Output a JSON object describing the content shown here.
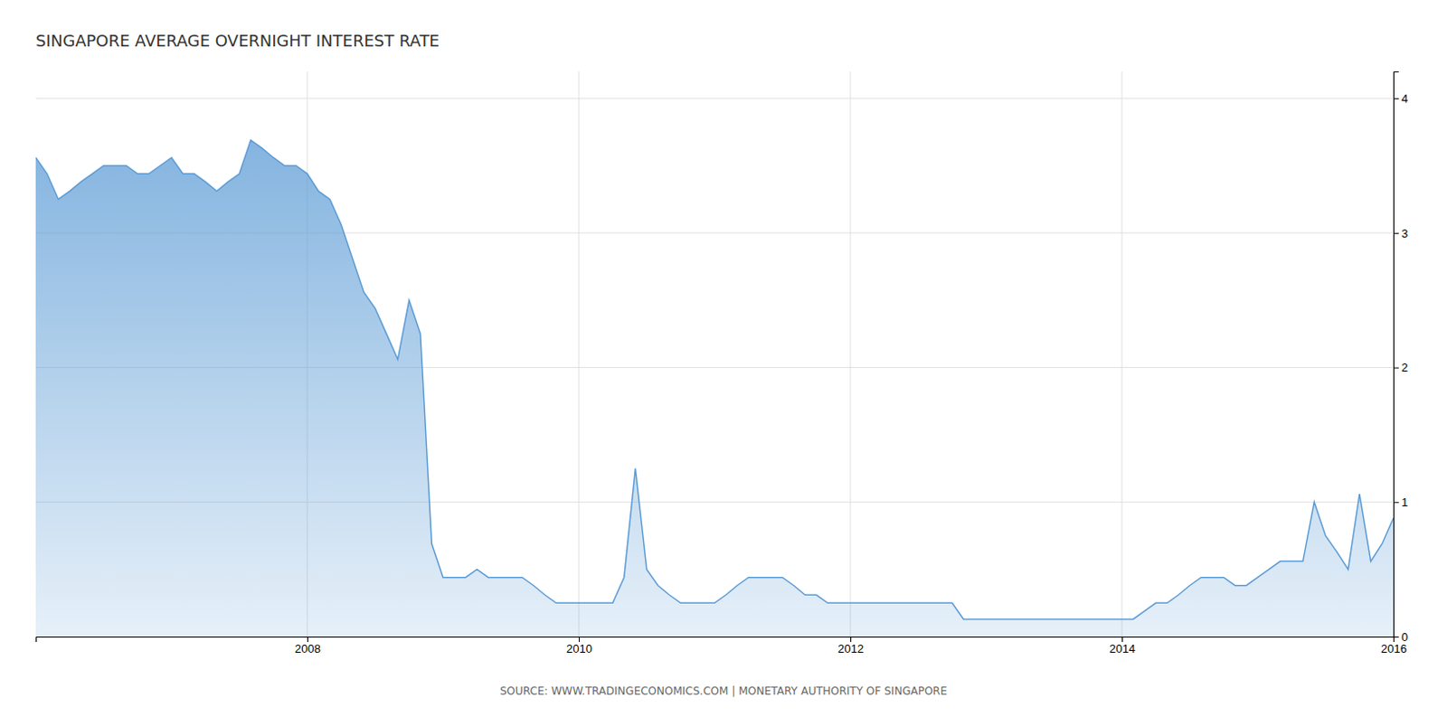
{
  "chart_data": {
    "type": "area",
    "title": "SINGAPORE AVERAGE OVERNIGHT INTEREST RATE",
    "annotations": [
      "SOURCE: WWW.TRADINGECONOMICS.COM | MONETARY AUTHORITY OF SINGAPORE"
    ],
    "color": "#5B9BD5",
    "grid": true,
    "ylim": [
      0,
      4.2
    ],
    "yticks": [
      0,
      1,
      2,
      3,
      4
    ],
    "categories": [
      null,
      null,
      null,
      null,
      null,
      null,
      null,
      null,
      null,
      null,
      null,
      null,
      null,
      null,
      null,
      null,
      null,
      null,
      null,
      null,
      null,
      null,
      null,
      null,
      "2008",
      null,
      null,
      null,
      null,
      null,
      null,
      null,
      null,
      null,
      null,
      null,
      null,
      null,
      null,
      null,
      null,
      null,
      null,
      null,
      null,
      null,
      null,
      null,
      "2010",
      null,
      null,
      null,
      null,
      null,
      null,
      null,
      null,
      null,
      null,
      null,
      null,
      null,
      null,
      null,
      null,
      null,
      null,
      null,
      null,
      null,
      null,
      null,
      "2012",
      null,
      null,
      null,
      null,
      null,
      null,
      null,
      null,
      null,
      null,
      null,
      null,
      null,
      null,
      null,
      null,
      null,
      null,
      null,
      null,
      null,
      null,
      null,
      "2014",
      null,
      null,
      null,
      null,
      null,
      null,
      null,
      null,
      null,
      null,
      null,
      null,
      null,
      null,
      null,
      null,
      null,
      null,
      null,
      null,
      null,
      null,
      null,
      "2016"
    ],
    "values": [
      3.56,
      3.44,
      3.25,
      3.31,
      3.38,
      3.44,
      3.5,
      3.5,
      3.5,
      3.44,
      3.44,
      3.5,
      3.56,
      3.44,
      3.44,
      3.38,
      3.31,
      3.38,
      3.44,
      3.69,
      3.63,
      3.56,
      3.5,
      3.5,
      3.44,
      3.31,
      3.25,
      3.06,
      2.81,
      2.56,
      2.44,
      2.25,
      2.06,
      2.5,
      2.25,
      0.69,
      0.44,
      0.44,
      0.44,
      0.5,
      0.44,
      0.44,
      0.44,
      0.44,
      0.38,
      0.31,
      0.25,
      0.25,
      0.25,
      0.25,
      0.25,
      0.25,
      0.44,
      1.25,
      0.5,
      0.38,
      0.31,
      0.25,
      0.25,
      0.25,
      0.25,
      0.31,
      0.38,
      0.44,
      0.44,
      0.44,
      0.44,
      0.38,
      0.31,
      0.31,
      0.25,
      0.25,
      0.25,
      0.25,
      0.25,
      0.25,
      0.25,
      0.25,
      0.25,
      0.25,
      0.25,
      0.25,
      0.13,
      0.13,
      0.13,
      0.13,
      0.13,
      0.13,
      0.13,
      0.13,
      0.13,
      0.13,
      0.13,
      0.13,
      0.13,
      0.13,
      0.13,
      0.13,
      0.19,
      0.25,
      0.25,
      0.31,
      0.38,
      0.44,
      0.44,
      0.44,
      0.38,
      0.38,
      0.44,
      0.5,
      0.56,
      0.56,
      0.56,
      1.0,
      0.75,
      0.63,
      0.5,
      1.06,
      0.56,
      0.69,
      0.88
    ]
  }
}
